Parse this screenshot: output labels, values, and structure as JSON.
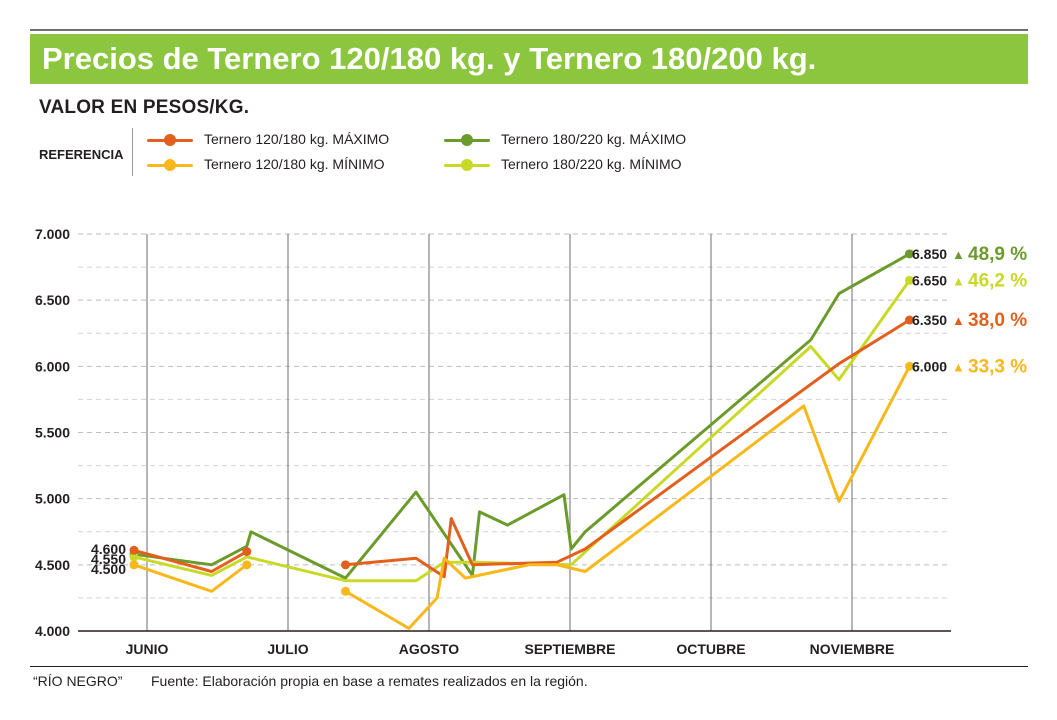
{
  "header": {
    "title": "Precios de Ternero 120/180 kg. y Ternero 180/200 kg.",
    "subtitle": "VALOR EN PESOS/KG.",
    "reference_label": "REFERENCIA"
  },
  "colors": {
    "banner": "#8cc63f",
    "t120_max": "#e35f1d",
    "t120_min": "#f7b81c",
    "t180_max": "#6b9b2a",
    "t180_min": "#c9d928"
  },
  "footer": {
    "credit": "“RÍO NEGRO”",
    "source": "Fuente: Elaboración propia en base a remates realizados en la región."
  },
  "chart_data": {
    "type": "line",
    "ylim": [
      4000,
      7000
    ],
    "ytick_values": [
      4000,
      4500,
      5000,
      5500,
      6000,
      6500,
      7000
    ],
    "ytick_labels": [
      "4.000",
      "4.500",
      "5.000",
      "5.500",
      "6.000",
      "6.500",
      "7.000"
    ],
    "grid": "horizontal dashed, vertical month separators",
    "month_labels": [
      "JUNIO",
      "JULIO",
      "AGOSTO",
      "SEPTIEMBRE",
      "OCTUBRE",
      "NOVIEMBRE"
    ],
    "x_range": [
      0,
      6.6
    ],
    "start_labels": [
      "4.600",
      "4.550",
      "4.500"
    ],
    "series": [
      {
        "name": "Ternero 180/220 kg. MÁXIMO",
        "key": "t180_max",
        "segments": [
          [
            [
              0,
              4580
            ],
            [
              0.55,
              4500
            ],
            [
              0.8,
              4640
            ],
            [
              0.83,
              4750
            ],
            [
              1.5,
              4400
            ],
            [
              2.0,
              5050
            ],
            [
              2.4,
              4420
            ],
            [
              2.45,
              4900
            ],
            [
              2.65,
              4800
            ],
            [
              3.05,
              5030
            ],
            [
              3.1,
              4620
            ],
            [
              3.2,
              4750
            ],
            [
              4.8,
              6200
            ],
            [
              5.0,
              6550
            ],
            [
              5.5,
              6850
            ]
          ]
        ],
        "end_label": "6.850",
        "change": "48,9 %"
      },
      {
        "name": "Ternero 180/220 kg. MÍNIMO",
        "key": "t180_min",
        "segments": [
          [
            [
              0,
              4560
            ],
            [
              0.55,
              4420
            ],
            [
              0.8,
              4560
            ],
            [
              1.5,
              4380
            ],
            [
              2.0,
              4380
            ],
            [
              2.2,
              4520
            ],
            [
              2.4,
              4520
            ],
            [
              3.1,
              4500
            ],
            [
              4.8,
              6150
            ],
            [
              5.0,
              5900
            ],
            [
              5.5,
              6650
            ]
          ]
        ],
        "end_label": "6.650",
        "change": "46,2 %"
      },
      {
        "name": "Ternero 120/180 kg. MÁXIMO",
        "key": "t120_max",
        "segments": [
          [
            [
              0,
              4610
            ],
            [
              0.55,
              4450
            ],
            [
              0.8,
              4600
            ]
          ],
          [
            [
              1.5,
              4500
            ],
            [
              2.0,
              4550
            ],
            [
              2.2,
              4410
            ],
            [
              2.25,
              4850
            ],
            [
              2.4,
              4500
            ],
            [
              3.0,
              4520
            ],
            [
              3.2,
              4620
            ],
            [
              5.0,
              6020
            ],
            [
              5.5,
              6350
            ]
          ]
        ],
        "end_label": "6.350",
        "change": "38,0 %"
      },
      {
        "name": "Ternero 120/180 kg. MÍNIMO",
        "key": "t120_min",
        "segments": [
          [
            [
              0,
              4500
            ],
            [
              0.55,
              4300
            ],
            [
              0.8,
              4500
            ]
          ],
          [
            [
              1.5,
              4300
            ],
            [
              1.95,
              4020
            ],
            [
              2.15,
              4250
            ],
            [
              2.2,
              4550
            ],
            [
              2.35,
              4400
            ],
            [
              2.8,
              4500
            ],
            [
              3.0,
              4500
            ],
            [
              3.2,
              4450
            ],
            [
              4.75,
              5700
            ],
            [
              5.0,
              4980
            ],
            [
              5.5,
              6000
            ]
          ]
        ],
        "end_label": "6.000",
        "change": "33,3 %"
      }
    ]
  }
}
